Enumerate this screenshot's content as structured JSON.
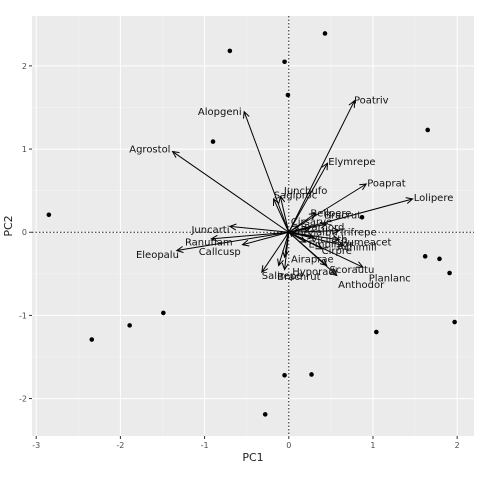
{
  "chart_data": {
    "type": "scatter",
    "subtype": "biplot",
    "title": "",
    "xlabel": "PC1",
    "ylabel": "PC2",
    "xlim": [
      -3.05,
      2.2
    ],
    "ylim": [
      -2.45,
      2.6
    ],
    "xticks": [
      "-3",
      "-2",
      "-1",
      "0",
      "1",
      "2"
    ],
    "yticks": [
      "-2",
      "-1",
      "0",
      "1",
      "2"
    ],
    "xtick_values": [
      -3,
      -2,
      -1,
      0,
      1,
      2
    ],
    "ytick_values": [
      -2,
      -1,
      0,
      1,
      2
    ],
    "grid": true,
    "reference_lines": "dotted lines at x=0 and y=0",
    "background": "#ebebeb",
    "points": [
      {
        "x": -2.85,
        "y": 0.21
      },
      {
        "x": -2.34,
        "y": -1.29
      },
      {
        "x": -1.89,
        "y": -1.12
      },
      {
        "x": -1.49,
        "y": -0.97
      },
      {
        "x": -0.7,
        "y": 2.18
      },
      {
        "x": -0.9,
        "y": 1.09
      },
      {
        "x": -0.05,
        "y": 2.05
      },
      {
        "x": -0.01,
        "y": 1.65
      },
      {
        "x": 0.43,
        "y": 2.39
      },
      {
        "x": 1.65,
        "y": 1.23
      },
      {
        "x": 0.87,
        "y": 0.18
      },
      {
        "x": 1.62,
        "y": -0.29
      },
      {
        "x": 1.79,
        "y": -0.32
      },
      {
        "x": 1.91,
        "y": -0.49
      },
      {
        "x": 1.97,
        "y": -1.08
      },
      {
        "x": 1.04,
        "y": -1.2
      },
      {
        "x": -0.05,
        "y": -1.72
      },
      {
        "x": 0.27,
        "y": -1.71
      },
      {
        "x": -0.28,
        "y": -2.19
      }
    ],
    "loadings": [
      {
        "label": "Alopgeni",
        "x": -0.53,
        "y": 1.45,
        "lx": -0.82,
        "ly": 1.45
      },
      {
        "label": "Agrostol",
        "x": -1.38,
        "y": 0.97,
        "lx": -1.65,
        "ly": 1.0
      },
      {
        "label": "Poatriv",
        "x": 0.78,
        "y": 1.58,
        "lx": 0.98,
        "ly": 1.59
      },
      {
        "label": "Elymrepe",
        "x": 0.46,
        "y": 0.83,
        "lx": 0.75,
        "ly": 0.85
      },
      {
        "label": "Poaprat",
        "x": 0.92,
        "y": 0.58,
        "lx": 1.16,
        "ly": 0.59
      },
      {
        "label": "Lolipere",
        "x": 1.47,
        "y": 0.4,
        "lx": 1.72,
        "ly": 0.42
      },
      {
        "label": "Juncbufo",
        "x": -0.1,
        "y": 0.43,
        "lx": 0.2,
        "ly": 0.5
      },
      {
        "label": "Sagiproc",
        "x": -0.18,
        "y": 0.4,
        "lx": 0.08,
        "ly": 0.45
      },
      {
        "label": "Bellpere",
        "x": 0.32,
        "y": 0.23,
        "lx": 0.5,
        "ly": 0.23
      },
      {
        "label": "Bracrut",
        "x": 0.45,
        "y": 0.1,
        "lx": 0.64,
        "ly": 0.21
      },
      {
        "label": "Planlanc",
        "x": 0.88,
        "y": -0.42,
        "lx": 1.2,
        "ly": -0.55
      },
      {
        "label": "Juncarti",
        "x": -0.7,
        "y": 0.07,
        "lx": -0.93,
        "ly": 0.03
      },
      {
        "label": "Ranuflam",
        "x": -0.92,
        "y": -0.08,
        "lx": -0.95,
        "ly": -0.12
      },
      {
        "label": "Eleopalu",
        "x": -1.33,
        "y": -0.22,
        "lx": -1.56,
        "ly": -0.27
      },
      {
        "label": "Callcusp",
        "x": -0.55,
        "y": -0.15,
        "lx": -0.82,
        "ly": -0.23
      },
      {
        "label": "Salirepe",
        "x": -0.32,
        "y": -0.48,
        "lx": -0.08,
        "ly": -0.52
      },
      {
        "label": "Airaprae",
        "x": -0.05,
        "y": -0.3,
        "lx": 0.28,
        "ly": -0.32
      },
      {
        "label": "Hyporadi",
        "x": -0.12,
        "y": -0.4,
        "lx": 0.31,
        "ly": -0.47
      },
      {
        "label": "Chenalbu",
        "x": 0.0,
        "y": 0.02,
        "lx": 0.3,
        "ly": 0.0
      },
      {
        "label": "Cirsarve",
        "x": 0.12,
        "y": 0.08,
        "lx": 0.27,
        "ly": 0.13
      },
      {
        "label": "Anthodor",
        "x": 0.57,
        "y": -0.52,
        "lx": 0.86,
        "ly": -0.63
      },
      {
        "label": "Trifrepe",
        "x": 0.6,
        "y": 0.02,
        "lx": 0.82,
        "ly": 0.0
      },
      {
        "label": "Rumeacet",
        "x": 0.6,
        "y": -0.09,
        "lx": 0.92,
        "ly": -0.12
      },
      {
        "label": "Achimill",
        "x": 0.65,
        "y": -0.16,
        "lx": 0.81,
        "ly": -0.18
      },
      {
        "label": "Cirpre",
        "x": 0.4,
        "y": -0.2,
        "lx": 0.57,
        "ly": -0.22
      },
      {
        "label": "Scorautu",
        "x": 0.45,
        "y": -0.4,
        "lx": 0.75,
        "ly": -0.45
      },
      {
        "label": "Empinigr",
        "x": 0.2,
        "y": -0.12,
        "lx": 0.5,
        "ly": -0.14
      },
      {
        "label": "Vicilath",
        "x": 0.3,
        "y": -0.06,
        "lx": 0.48,
        "ly": -0.08
      },
      {
        "label": "Brarhord",
        "x": 0.25,
        "y": 0.05,
        "lx": 0.4,
        "ly": 0.06
      },
      {
        "label": "Brachrut",
        "x": -0.05,
        "y": -0.45,
        "lx": 0.12,
        "ly": -0.53
      }
    ]
  }
}
